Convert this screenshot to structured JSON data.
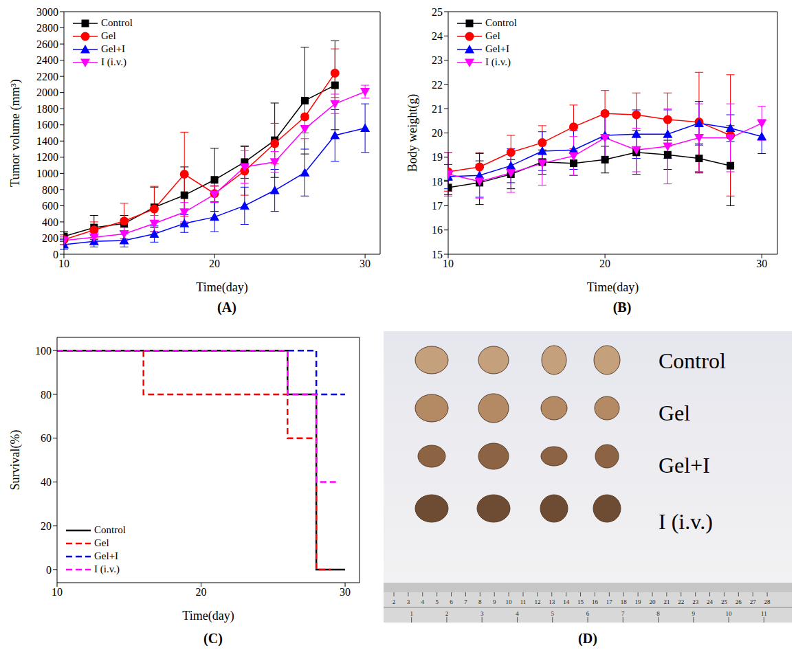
{
  "chart_data": [
    {
      "type": "line",
      "panel": "(A)",
      "x_label": "Time(day)",
      "y_label": "Tumor volume (mm³)",
      "xlim": [
        10,
        31
      ],
      "xticks": [
        10,
        20,
        30
      ],
      "ylim": [
        0,
        3000
      ],
      "yticks": [
        0,
        200,
        400,
        600,
        800,
        1000,
        1200,
        1400,
        1600,
        1800,
        2000,
        2200,
        2400,
        2600,
        2800,
        3000
      ],
      "legend": "upper left",
      "grid": false,
      "series": [
        {
          "name": "Control",
          "color": "#000000",
          "marker": "square",
          "line_style": "solid",
          "x": [
            10,
            12,
            14,
            16,
            18,
            20,
            22,
            24,
            26,
            28
          ],
          "values": [
            220,
            330,
            380,
            580,
            730,
            920,
            1140,
            1410,
            1900,
            2090
          ],
          "errors": [
            60,
            150,
            100,
            250,
            350,
            390,
            200,
            460,
            660,
            550
          ]
        },
        {
          "name": "Gel",
          "color": "#ff0000",
          "marker": "circle",
          "line_style": "solid",
          "x": [
            10,
            12,
            14,
            16,
            18,
            20,
            22,
            24,
            26,
            28
          ],
          "values": [
            180,
            300,
            410,
            560,
            990,
            750,
            1030,
            1370,
            1700,
            2240
          ],
          "errors": [
            60,
            100,
            220,
            280,
            520,
            100,
            300,
            250,
            200,
            300
          ]
        },
        {
          "name": "Gel+I",
          "color": "#0000ff",
          "marker": "triangle",
          "line_style": "solid",
          "x": [
            10,
            12,
            14,
            16,
            18,
            20,
            22,
            24,
            26,
            28,
            30
          ],
          "values": [
            120,
            160,
            170,
            250,
            380,
            460,
            600,
            790,
            1010,
            1470,
            1560
          ],
          "errors": [
            60,
            70,
            80,
            100,
            110,
            180,
            230,
            260,
            290,
            320,
            300
          ]
        },
        {
          "name": "I (i.v.)",
          "color": "#ff00ff",
          "marker": "triangle_down",
          "line_style": "solid",
          "x": [
            10,
            12,
            14,
            16,
            18,
            20,
            22,
            24,
            26,
            28,
            30
          ],
          "values": [
            170,
            210,
            250,
            380,
            520,
            740,
            1080,
            1140,
            1550,
            1860,
            2010
          ],
          "errors": [
            50,
            60,
            80,
            100,
            120,
            100,
            200,
            130,
            120,
            120,
            80
          ]
        }
      ]
    },
    {
      "type": "line",
      "panel": "(B)",
      "x_label": "Time(day)",
      "y_label": "Body weight(g)",
      "xlim": [
        10,
        31
      ],
      "xticks": [
        10,
        20,
        30
      ],
      "ylim": [
        15,
        25
      ],
      "yticks": [
        15,
        16,
        17,
        18,
        19,
        20,
        21,
        22,
        23,
        24,
        25
      ],
      "legend": "upper left",
      "grid": false,
      "series": [
        {
          "name": "Control",
          "color": "#000000",
          "marker": "square",
          "line_style": "solid",
          "x": [
            10,
            12,
            14,
            16,
            18,
            20,
            22,
            24,
            26,
            28
          ],
          "values": [
            17.75,
            17.95,
            18.3,
            18.8,
            18.75,
            18.9,
            19.2,
            19.1,
            18.95,
            18.65
          ],
          "errors": [
            0.3,
            0.9,
            0.6,
            0.5,
            0.5,
            0.55,
            0.9,
            0.6,
            0.6,
            1.65
          ]
        },
        {
          "name": "Gel",
          "color": "#ff0000",
          "marker": "circle",
          "line_style": "solid",
          "x": [
            10,
            12,
            14,
            16,
            18,
            20,
            22,
            24,
            26,
            28
          ],
          "values": [
            18.4,
            18.6,
            19.2,
            19.6,
            20.25,
            20.8,
            20.75,
            20.55,
            20.45,
            19.9
          ],
          "errors": [
            0.8,
            0.6,
            0.7,
            0.7,
            0.9,
            0.95,
            0.9,
            1.1,
            2.05,
            2.5
          ]
        },
        {
          "name": "Gel+I",
          "color": "#0000ff",
          "marker": "triangle",
          "line_style": "solid",
          "x": [
            10,
            12,
            14,
            16,
            18,
            20,
            22,
            24,
            26,
            28,
            30
          ],
          "values": [
            18.2,
            18.25,
            18.65,
            19.25,
            19.3,
            19.9,
            19.95,
            19.95,
            20.4,
            20.2,
            19.85
          ],
          "errors": [
            0.5,
            0.9,
            0.7,
            0.8,
            0.8,
            1.0,
            1.0,
            1.0,
            0.9,
            0.55,
            0.7
          ]
        },
        {
          "name": "I (i.v.)",
          "color": "#ff00ff",
          "marker": "triangle_down",
          "line_style": "solid",
          "x": [
            10,
            12,
            14,
            16,
            18,
            20,
            22,
            24,
            26,
            28,
            30
          ],
          "values": [
            18.3,
            18.0,
            18.35,
            18.75,
            19.05,
            19.8,
            19.3,
            19.45,
            19.8,
            19.8,
            20.4
          ],
          "errors": [
            0.9,
            0.7,
            0.8,
            0.9,
            0.8,
            0.9,
            0.9,
            1.55,
            1.4,
            1.4,
            0.7
          ]
        }
      ]
    },
    {
      "type": "step",
      "panel": "(C)",
      "x_label": "Time(day)",
      "y_label": "Survival(%)",
      "xlim": [
        10,
        31
      ],
      "xticks": [
        10,
        20,
        30
      ],
      "ylim": [
        -6,
        106
      ],
      "yticks": [
        0,
        20,
        40,
        60,
        80,
        100
      ],
      "legend": "lower left",
      "grid": false,
      "series": [
        {
          "name": "Control",
          "color": "#000000",
          "line_style": "solid",
          "x": [
            10,
            26,
            28,
            30
          ],
          "values": [
            100,
            80,
            0,
            0
          ]
        },
        {
          "name": "Gel",
          "color": "#ff0000",
          "line_style": "dashed",
          "x": [
            10,
            16,
            26,
            28,
            29
          ],
          "values": [
            100,
            80,
            60,
            0,
            0
          ]
        },
        {
          "name": "Gel+I",
          "color": "#0000ff",
          "line_style": "dashed",
          "x": [
            10,
            28,
            30
          ],
          "values": [
            100,
            80,
            80
          ]
        },
        {
          "name": "I (i.v.)",
          "color": "#ff00ff",
          "line_style": "dashed",
          "x": [
            10,
            26,
            28,
            29.5
          ],
          "values": [
            100,
            80,
            40,
            40
          ]
        }
      ]
    }
  ],
  "photo": {
    "panel": "(D)",
    "labels": [
      "Control",
      "Gel",
      "Gel+I",
      "I (i.v.)"
    ],
    "ruler_cm": [
      2,
      3,
      4,
      5,
      6,
      7,
      8,
      9,
      10,
      11,
      12,
      13,
      14,
      15,
      16,
      17,
      18,
      19,
      20,
      21,
      22,
      23,
      24,
      25,
      26,
      27,
      28
    ],
    "ruler_in": [
      1,
      2,
      3,
      4,
      5,
      6,
      7,
      8,
      9,
      10,
      11
    ]
  }
}
